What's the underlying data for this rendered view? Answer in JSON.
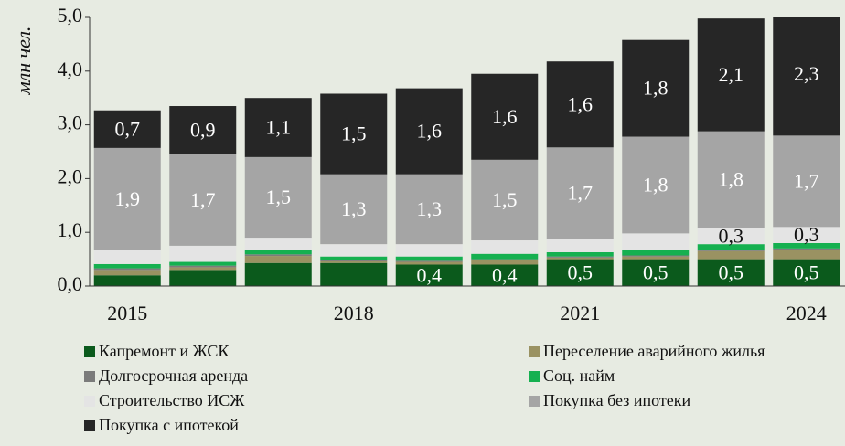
{
  "chart_data": {
    "type": "stacked_bar",
    "y_label": "млн чел.",
    "categories": [
      "2015",
      null,
      null,
      "2018",
      null,
      null,
      "2021",
      null,
      null,
      "2024"
    ],
    "ylim": [
      0,
      5
    ],
    "yticks": [
      {
        "value": 0,
        "label": "0,0"
      },
      {
        "value": 1,
        "label": "1,0"
      },
      {
        "value": 2,
        "label": "2,0"
      },
      {
        "value": 3,
        "label": "3,0"
      },
      {
        "value": 4,
        "label": "4,0"
      },
      {
        "value": 5,
        "label": "5,0"
      }
    ],
    "legend": "bottom",
    "series": [
      {
        "name": "Капремонт и ЖСК",
        "color": "#0b5a1c",
        "values": [
          0.2,
          0.3,
          0.43,
          0.43,
          0.4,
          0.4,
          0.5,
          0.5,
          0.5,
          0.5
        ],
        "value_labels": [
          null,
          null,
          null,
          null,
          "0,4",
          "0,4",
          "0,5",
          "0,5",
          "0,5",
          "0,5"
        ]
      },
      {
        "name": "Переселение аварийного жилья",
        "color": "#9a9262",
        "values": [
          0.1,
          0.05,
          0.13,
          0.03,
          0.05,
          0.08,
          0.03,
          0.05,
          0.15,
          0.17
        ]
      },
      {
        "name": "Долгосрочная аренда",
        "color": "#7b7b7b",
        "values": [
          0.03,
          0.03,
          0.03,
          0.02,
          0.02,
          0.02,
          0.02,
          0.02,
          0.03,
          0.03
        ]
      },
      {
        "name": "Соц. найм",
        "color": "#15b050",
        "values": [
          0.08,
          0.07,
          0.08,
          0.07,
          0.08,
          0.1,
          0.08,
          0.1,
          0.1,
          0.1
        ]
      },
      {
        "name": "Строительство ИСЖ",
        "color": "#e4e4e4",
        "values": [
          0.26,
          0.3,
          0.23,
          0.23,
          0.23,
          0.25,
          0.25,
          0.31,
          0.3,
          0.3
        ],
        "value_labels": [
          null,
          null,
          null,
          null,
          null,
          null,
          null,
          null,
          "0,3",
          "0,3"
        ]
      },
      {
        "name": "Покупка без ипотеки",
        "color": "#a5a5a5",
        "values": [
          1.9,
          1.7,
          1.5,
          1.3,
          1.3,
          1.5,
          1.7,
          1.8,
          1.8,
          1.7
        ],
        "value_labels": [
          "1,9",
          "1,7",
          "1,5",
          "1,3",
          "1,3",
          "1,5",
          "1,7",
          "1,8",
          "1,8",
          "1,7"
        ]
      },
      {
        "name": "Покупка с ипотекой",
        "color": "#262626",
        "values": [
          0.7,
          0.9,
          1.1,
          1.5,
          1.6,
          1.6,
          1.6,
          1.8,
          2.1,
          2.3
        ],
        "value_labels": [
          "0,7",
          "0,9",
          "1,1",
          "1,5",
          "1,6",
          "1,6",
          "1,6",
          "1,8",
          "2,1",
          "2,3"
        ]
      }
    ]
  }
}
